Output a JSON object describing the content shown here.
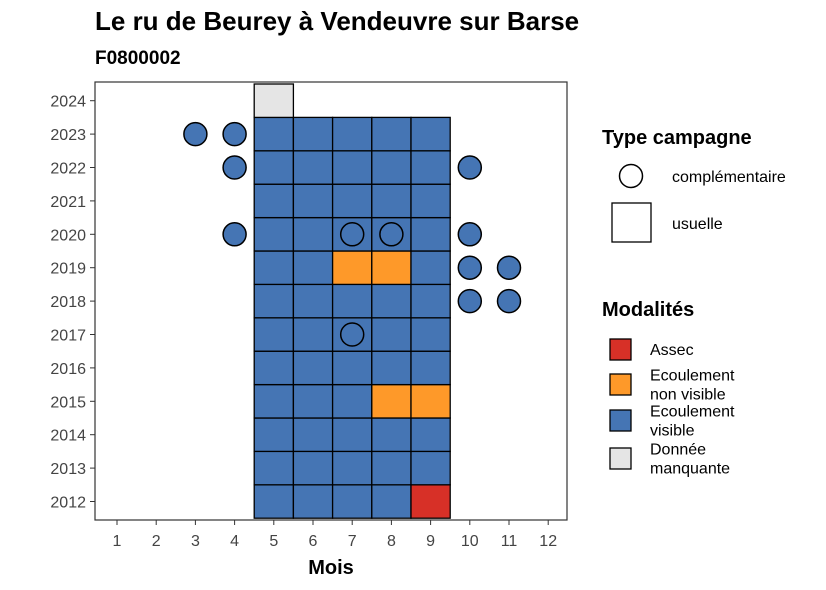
{
  "chart_data": {
    "type": "heatmap",
    "title": "Le ru de Beurey à Vendeuvre sur Barse",
    "subtitle": "F0800002",
    "xlabel": "Mois",
    "ylabel": "",
    "x_ticks": [
      "1",
      "2",
      "3",
      "4",
      "5",
      "6",
      "7",
      "8",
      "9",
      "10",
      "11",
      "12"
    ],
    "y_ticks": [
      "2012",
      "2013",
      "2014",
      "2015",
      "2016",
      "2017",
      "2018",
      "2019",
      "2020",
      "2021",
      "2022",
      "2023",
      "2024"
    ],
    "xlim": [
      0.5,
      12.5
    ],
    "ylim": [
      2011.5,
      2024.5
    ],
    "colors": {
      "Assec": "#d73027",
      "Ecoulement non visible": "#fe9929",
      "Ecoulement visible": "#4575b4",
      "Donnée manquante": "#e5e5e5"
    },
    "legend_shape": {
      "title": "Type campagne",
      "entries": [
        "complémentaire",
        "usuelle"
      ]
    },
    "legend_modalites": {
      "title": "Modalités",
      "entries": [
        {
          "key": "Assec",
          "lines": [
            "Assec"
          ]
        },
        {
          "key": "Ecoulement non visible",
          "lines": [
            "Ecoulement",
            "non visible"
          ]
        },
        {
          "key": "Ecoulement visible",
          "lines": [
            "Ecoulement",
            "visible"
          ]
        },
        {
          "key": "Donnée manquante",
          "lines": [
            "Donnée",
            "manquante"
          ]
        }
      ]
    },
    "usuelle": [
      {
        "year": 2012,
        "months": [
          5,
          6,
          7,
          8,
          9
        ],
        "values": [
          "Ecoulement visible",
          "Ecoulement visible",
          "Ecoulement visible",
          "Ecoulement visible",
          "Assec"
        ]
      },
      {
        "year": 2013,
        "months": [
          5,
          6,
          7,
          8,
          9
        ],
        "values": [
          "Ecoulement visible",
          "Ecoulement visible",
          "Ecoulement visible",
          "Ecoulement visible",
          "Ecoulement visible"
        ]
      },
      {
        "year": 2014,
        "months": [
          5,
          6,
          7,
          8,
          9
        ],
        "values": [
          "Ecoulement visible",
          "Ecoulement visible",
          "Ecoulement visible",
          "Ecoulement visible",
          "Ecoulement visible"
        ]
      },
      {
        "year": 2015,
        "months": [
          5,
          6,
          7,
          8,
          9
        ],
        "values": [
          "Ecoulement visible",
          "Ecoulement visible",
          "Ecoulement visible",
          "Ecoulement non visible",
          "Ecoulement non visible"
        ]
      },
      {
        "year": 2016,
        "months": [
          5,
          6,
          7,
          8,
          9
        ],
        "values": [
          "Ecoulement visible",
          "Ecoulement visible",
          "Ecoulement visible",
          "Ecoulement visible",
          "Ecoulement visible"
        ]
      },
      {
        "year": 2017,
        "months": [
          5,
          6,
          7,
          8,
          9
        ],
        "values": [
          "Ecoulement visible",
          "Ecoulement visible",
          "Ecoulement visible",
          "Ecoulement visible",
          "Ecoulement visible"
        ]
      },
      {
        "year": 2018,
        "months": [
          5,
          6,
          7,
          8,
          9
        ],
        "values": [
          "Ecoulement visible",
          "Ecoulement visible",
          "Ecoulement visible",
          "Ecoulement visible",
          "Ecoulement visible"
        ]
      },
      {
        "year": 2019,
        "months": [
          5,
          6,
          7,
          8,
          9
        ],
        "values": [
          "Ecoulement visible",
          "Ecoulement visible",
          "Ecoulement non visible",
          "Ecoulement non visible",
          "Ecoulement visible"
        ]
      },
      {
        "year": 2020,
        "months": [
          5,
          6,
          7,
          8,
          9
        ],
        "values": [
          "Ecoulement visible",
          "Ecoulement visible",
          "Ecoulement visible",
          "Ecoulement visible",
          "Ecoulement visible"
        ]
      },
      {
        "year": 2021,
        "months": [
          5,
          6,
          7,
          8,
          9
        ],
        "values": [
          "Ecoulement visible",
          "Ecoulement visible",
          "Ecoulement visible",
          "Ecoulement visible",
          "Ecoulement visible"
        ]
      },
      {
        "year": 2022,
        "months": [
          5,
          6,
          7,
          8,
          9
        ],
        "values": [
          "Ecoulement visible",
          "Ecoulement visible",
          "Ecoulement visible",
          "Ecoulement visible",
          "Ecoulement visible"
        ]
      },
      {
        "year": 2023,
        "months": [
          5,
          6,
          7,
          8,
          9
        ],
        "values": [
          "Ecoulement visible",
          "Ecoulement visible",
          "Ecoulement visible",
          "Ecoulement visible",
          "Ecoulement visible"
        ]
      },
      {
        "year": 2024,
        "months": [
          5
        ],
        "values": [
          "Donnée manquante"
        ]
      }
    ],
    "complementaire": [
      {
        "year": 2023,
        "month": 3,
        "value": "Ecoulement visible"
      },
      {
        "year": 2023,
        "month": 4,
        "value": "Ecoulement visible"
      },
      {
        "year": 2022,
        "month": 4,
        "value": "Ecoulement visible"
      },
      {
        "year": 2022,
        "month": 10,
        "value": "Ecoulement visible"
      },
      {
        "year": 2020,
        "month": 4,
        "value": "Ecoulement visible"
      },
      {
        "year": 2020,
        "month": 7,
        "value": "Ecoulement visible"
      },
      {
        "year": 2020,
        "month": 8,
        "value": "Ecoulement visible"
      },
      {
        "year": 2020,
        "month": 10,
        "value": "Ecoulement visible"
      },
      {
        "year": 2019,
        "month": 10,
        "value": "Ecoulement visible"
      },
      {
        "year": 2019,
        "month": 11,
        "value": "Ecoulement visible"
      },
      {
        "year": 2018,
        "month": 10,
        "value": "Ecoulement visible"
      },
      {
        "year": 2018,
        "month": 11,
        "value": "Ecoulement visible"
      },
      {
        "year": 2017,
        "month": 7,
        "value": "Ecoulement visible"
      }
    ]
  }
}
